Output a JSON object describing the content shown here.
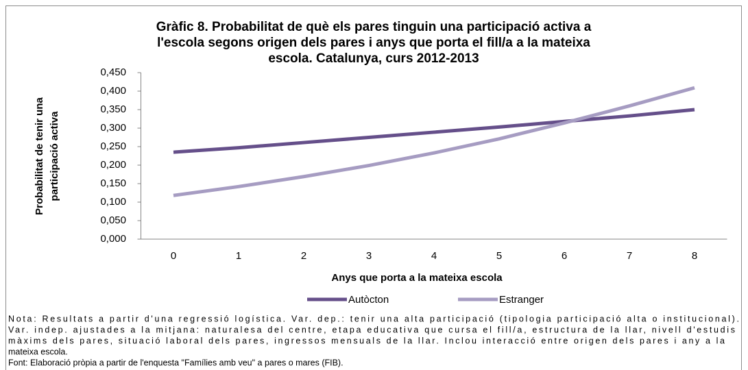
{
  "chart_data": {
    "type": "line",
    "title": [
      "Gràfic 8. Probabilitat de què els pares tinguin una participació activa a",
      "l'escola segons origen dels pares i anys que porta el fill/a a la mateixa",
      "escola. Catalunya, curs 2012-2013"
    ],
    "y_label": [
      "Probabilitat de tenir una",
      "participació  activa"
    ],
    "x_label": "Anys que porta a la mateixa escola",
    "categories": [
      "0",
      "1",
      "2",
      "3",
      "4",
      "5",
      "6",
      "7",
      "8"
    ],
    "series": [
      {
        "name": "Autòcton",
        "color": "#654f8a",
        "values": [
          0.235,
          0.247,
          0.261,
          0.275,
          0.289,
          0.303,
          0.318,
          0.333,
          0.35
        ]
      },
      {
        "name": "Estranger",
        "color": "#a69cc2",
        "values": [
          0.118,
          0.142,
          0.169,
          0.199,
          0.233,
          0.271,
          0.314,
          0.36,
          0.409
        ]
      }
    ],
    "ylim": [
      0,
      0.45
    ],
    "yticks": [
      {
        "value": 0,
        "label": "0,000"
      },
      {
        "value": 0.05,
        "label": "0,050"
      },
      {
        "value": 0.1,
        "label": "0,100"
      },
      {
        "value": 0.15,
        "label": "0,150"
      },
      {
        "value": 0.2,
        "label": "0,200"
      },
      {
        "value": 0.25,
        "label": "0,250"
      },
      {
        "value": 0.3,
        "label": "0,300"
      },
      {
        "value": 0.35,
        "label": "0,350"
      },
      {
        "value": 0.4,
        "label": "0,400"
      },
      {
        "value": 0.45,
        "label": "0,450"
      }
    ],
    "legend": "bottom",
    "notes": [
      "Nota: Resultats a partir d'una regressió logística. Var. dep.: tenir una alta participació (tipologia participació alta o institucional).",
      "Var. indep. ajustades a la mitjana: naturalesa del centre, etapa educativa que cursa el fill/a, estructura de la llar, nivell d'estudis",
      "màxims dels pares, situació laboral dels pares, ingressos mensuals de la llar. Inclou interacció entre origen dels pares i any a la",
      "mateixa escola.",
      "Font: Elaboració pròpia a partir de l'enquesta \"Famílies amb veu\" a pares o mares (FIB)."
    ]
  }
}
